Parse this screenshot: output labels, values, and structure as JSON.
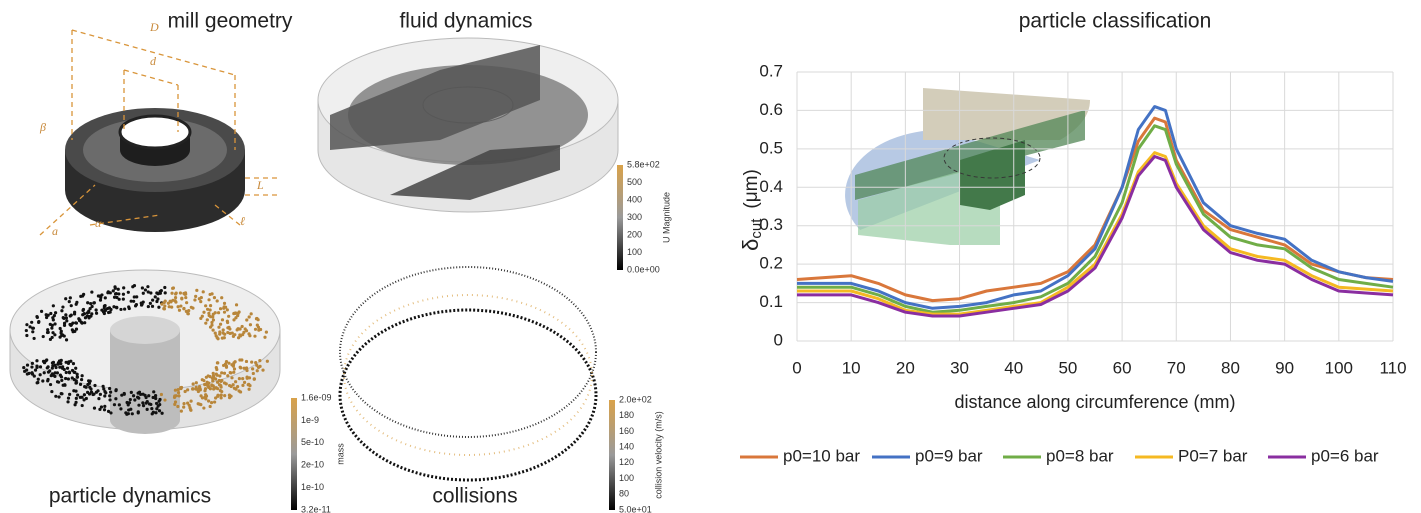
{
  "panels": [
    {
      "title": "mill geometry",
      "labels": [
        "D",
        "d",
        "β",
        "L",
        "a",
        "α",
        "ℓ"
      ]
    },
    {
      "title": "fluid dynamics",
      "colorbar": {
        "title": "U Magnitude",
        "ticks": [
          "5.8e+02",
          "500",
          "400",
          "300",
          "200",
          "100",
          "0.0e+00"
        ]
      }
    },
    {
      "title": "particle dynamics",
      "colorbar": {
        "title": "mass",
        "ticks": [
          "1.6e-09",
          "1e-9",
          "5e-10",
          "2e-10",
          "1e-10",
          "3.2e-11"
        ]
      }
    },
    {
      "title": "collisions",
      "colorbar": {
        "title": "collision velocity (m/s)",
        "ticks": [
          "2.0e+02",
          "180",
          "160",
          "140",
          "120",
          "100",
          "80",
          "5.0e+01"
        ]
      }
    }
  ],
  "chart_data": {
    "type": "line",
    "title": "particle classification",
    "xlabel": "distance along circumference (mm)",
    "ylabel": "δ",
    "ylabel_sub": "cut",
    "ylabel_unit": "(μm)",
    "x": [
      0,
      5,
      10,
      15,
      20,
      25,
      30,
      35,
      40,
      45,
      50,
      55,
      60,
      63,
      66,
      68,
      70,
      75,
      80,
      85,
      90,
      95,
      100,
      105,
      110
    ],
    "series": [
      {
        "name": "p0=10 bar",
        "color": "#d9773b",
        "values": [
          0.16,
          0.165,
          0.17,
          0.15,
          0.12,
          0.105,
          0.11,
          0.13,
          0.14,
          0.15,
          0.18,
          0.25,
          0.4,
          0.52,
          0.58,
          0.57,
          0.47,
          0.34,
          0.29,
          0.27,
          0.25,
          0.2,
          0.18,
          0.165,
          0.16
        ]
      },
      {
        "name": "p0=9 bar",
        "color": "#4472c4",
        "values": [
          0.15,
          0.15,
          0.15,
          0.13,
          0.1,
          0.085,
          0.09,
          0.1,
          0.12,
          0.13,
          0.17,
          0.24,
          0.4,
          0.55,
          0.61,
          0.6,
          0.5,
          0.36,
          0.3,
          0.28,
          0.265,
          0.21,
          0.18,
          0.165,
          0.155
        ]
      },
      {
        "name": "p0=8 bar",
        "color": "#70ad47",
        "values": [
          0.14,
          0.14,
          0.14,
          0.12,
          0.09,
          0.075,
          0.08,
          0.09,
          0.1,
          0.115,
          0.15,
          0.22,
          0.36,
          0.5,
          0.56,
          0.55,
          0.46,
          0.33,
          0.27,
          0.25,
          0.24,
          0.19,
          0.16,
          0.15,
          0.14
        ]
      },
      {
        "name": "P0=7 bar",
        "color": "#f5b922",
        "values": [
          0.13,
          0.13,
          0.13,
          0.11,
          0.08,
          0.07,
          0.07,
          0.08,
          0.09,
          0.1,
          0.14,
          0.2,
          0.33,
          0.44,
          0.49,
          0.48,
          0.41,
          0.3,
          0.24,
          0.22,
          0.21,
          0.17,
          0.14,
          0.135,
          0.13
        ]
      },
      {
        "name": "p0=6 bar",
        "color": "#8a2ea0",
        "values": [
          0.12,
          0.12,
          0.12,
          0.1,
          0.075,
          0.065,
          0.065,
          0.075,
          0.085,
          0.095,
          0.13,
          0.19,
          0.32,
          0.43,
          0.48,
          0.47,
          0.4,
          0.29,
          0.23,
          0.21,
          0.2,
          0.16,
          0.13,
          0.125,
          0.12
        ]
      }
    ],
    "xlim": [
      0,
      110
    ],
    "xticks": [
      0,
      10,
      20,
      30,
      40,
      50,
      60,
      70,
      80,
      90,
      100,
      110
    ],
    "ylim": [
      0,
      0.7
    ],
    "yticks": [
      0,
      0.1,
      0.2,
      0.3,
      0.4,
      0.5,
      0.6,
      0.7
    ],
    "grid": true,
    "legend": "bottom"
  }
}
